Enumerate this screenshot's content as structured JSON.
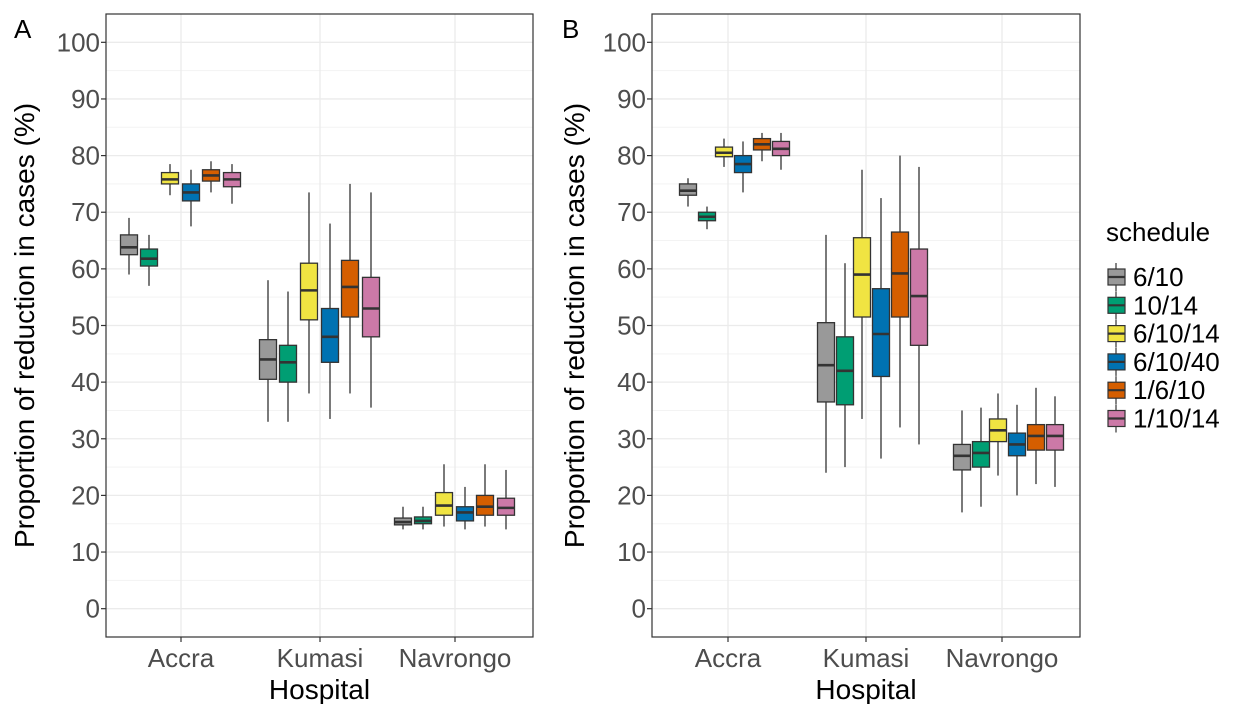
{
  "legend": {
    "title": "schedule",
    "items": [
      {
        "name": "6/10",
        "color": "#999999"
      },
      {
        "name": "10/14",
        "color": "#009E73"
      },
      {
        "name": "6/10/14",
        "color": "#F0E442"
      },
      {
        "name": "6/10/40",
        "color": "#0072B2"
      },
      {
        "name": "1/6/10",
        "color": "#D55E00"
      },
      {
        "name": "1/10/14",
        "color": "#CC79A7"
      }
    ]
  },
  "chart_data": [
    {
      "type": "box",
      "panel_label": "A",
      "xlabel": "Hospital",
      "ylabel": "Proportion of reduction in cases (%)",
      "categories": [
        "Accra",
        "Kumasi",
        "Navrongo"
      ],
      "ylim": [
        -5,
        105
      ],
      "yticks": [
        0,
        10,
        20,
        30,
        40,
        50,
        60,
        70,
        80,
        90,
        100
      ],
      "grid": true,
      "series": [
        {
          "name": "6/10",
          "boxes": [
            {
              "min": 59,
              "q1": 62.5,
              "median": 63.8,
              "q3": 66,
              "max": 69
            },
            {
              "min": 33,
              "q1": 40.5,
              "median": 44,
              "q3": 47.5,
              "max": 58
            },
            {
              "min": 14,
              "q1": 14.8,
              "median": 15.3,
              "q3": 16,
              "max": 18
            }
          ]
        },
        {
          "name": "10/14",
          "boxes": [
            {
              "min": 57,
              "q1": 60.5,
              "median": 61.8,
              "q3": 63.5,
              "max": 66
            },
            {
              "min": 33,
              "q1": 40,
              "median": 43.5,
              "q3": 46.5,
              "max": 56
            },
            {
              "min": 14,
              "q1": 15,
              "median": 15.5,
              "q3": 16.2,
              "max": 18
            }
          ]
        },
        {
          "name": "6/10/14",
          "boxes": [
            {
              "min": 73,
              "q1": 75,
              "median": 75.8,
              "q3": 77,
              "max": 78.5
            },
            {
              "min": 38,
              "q1": 51,
              "median": 56.2,
              "q3": 61,
              "max": 73.5
            },
            {
              "min": 14.5,
              "q1": 16.5,
              "median": 18.2,
              "q3": 20.5,
              "max": 25.5
            }
          ]
        },
        {
          "name": "6/10/40",
          "boxes": [
            {
              "min": 67.5,
              "q1": 72,
              "median": 73.5,
              "q3": 75,
              "max": 77.5
            },
            {
              "min": 33.5,
              "q1": 43.5,
              "median": 48,
              "q3": 53,
              "max": 68
            },
            {
              "min": 14,
              "q1": 15.5,
              "median": 17,
              "q3": 18,
              "max": 21.5
            }
          ]
        },
        {
          "name": "1/6/10",
          "boxes": [
            {
              "min": 73.5,
              "q1": 75.5,
              "median": 76.5,
              "q3": 77.5,
              "max": 79
            },
            {
              "min": 38,
              "q1": 51.5,
              "median": 56.8,
              "q3": 61.5,
              "max": 75
            },
            {
              "min": 14.5,
              "q1": 16.5,
              "median": 18,
              "q3": 20,
              "max": 25.5
            }
          ]
        },
        {
          "name": "1/10/14",
          "boxes": [
            {
              "min": 71.5,
              "q1": 74.5,
              "median": 75.8,
              "q3": 77,
              "max": 78.5
            },
            {
              "min": 35.5,
              "q1": 48,
              "median": 53,
              "q3": 58.5,
              "max": 73.5
            },
            {
              "min": 14,
              "q1": 16.5,
              "median": 17.8,
              "q3": 19.5,
              "max": 24.5
            }
          ]
        }
      ]
    },
    {
      "type": "box",
      "panel_label": "B",
      "xlabel": "Hospital",
      "ylabel": "Proportion of reduction in cases (%)",
      "categories": [
        "Accra",
        "Kumasi",
        "Navrongo"
      ],
      "ylim": [
        -5,
        105
      ],
      "yticks": [
        0,
        10,
        20,
        30,
        40,
        50,
        60,
        70,
        80,
        90,
        100
      ],
      "grid": true,
      "series": [
        {
          "name": "6/10",
          "boxes": [
            {
              "min": 71,
              "q1": 73,
              "median": 73.8,
              "q3": 75,
              "max": 76
            },
            {
              "min": 24,
              "q1": 36.5,
              "median": 43,
              "q3": 50.5,
              "max": 66
            },
            {
              "min": 17,
              "q1": 24.5,
              "median": 27,
              "q3": 29,
              "max": 35
            }
          ]
        },
        {
          "name": "10/14",
          "boxes": [
            {
              "min": 67,
              "q1": 68.5,
              "median": 69.2,
              "q3": 70,
              "max": 71
            },
            {
              "min": 25,
              "q1": 36,
              "median": 42,
              "q3": 48,
              "max": 61
            },
            {
              "min": 18,
              "q1": 25,
              "median": 27.5,
              "q3": 29.5,
              "max": 35.5
            }
          ]
        },
        {
          "name": "6/10/14",
          "boxes": [
            {
              "min": 78,
              "q1": 79.8,
              "median": 80.5,
              "q3": 81.5,
              "max": 83
            },
            {
              "min": 33.5,
              "q1": 51.5,
              "median": 59,
              "q3": 65.5,
              "max": 77.5
            },
            {
              "min": 23.5,
              "q1": 29.5,
              "median": 31.5,
              "q3": 33.5,
              "max": 38
            }
          ]
        },
        {
          "name": "6/10/40",
          "boxes": [
            {
              "min": 73.5,
              "q1": 77,
              "median": 78.5,
              "q3": 80,
              "max": 82.5
            },
            {
              "min": 26.5,
              "q1": 41,
              "median": 48.5,
              "q3": 56.5,
              "max": 72.5
            },
            {
              "min": 20,
              "q1": 27,
              "median": 29,
              "q3": 31,
              "max": 36
            }
          ]
        },
        {
          "name": "1/6/10",
          "boxes": [
            {
              "min": 79,
              "q1": 81,
              "median": 82,
              "q3": 83,
              "max": 84
            },
            {
              "min": 32,
              "q1": 51.5,
              "median": 59.2,
              "q3": 66.5,
              "max": 80
            },
            {
              "min": 22,
              "q1": 28,
              "median": 30.5,
              "q3": 32.5,
              "max": 39
            }
          ]
        },
        {
          "name": "1/10/14",
          "boxes": [
            {
              "min": 77.5,
              "q1": 80,
              "median": 81.2,
              "q3": 82.5,
              "max": 84
            },
            {
              "min": 29,
              "q1": 46.5,
              "median": 55.2,
              "q3": 63.5,
              "max": 78
            },
            {
              "min": 21.5,
              "q1": 28,
              "median": 30.5,
              "q3": 32.5,
              "max": 37.5
            }
          ]
        }
      ]
    }
  ]
}
